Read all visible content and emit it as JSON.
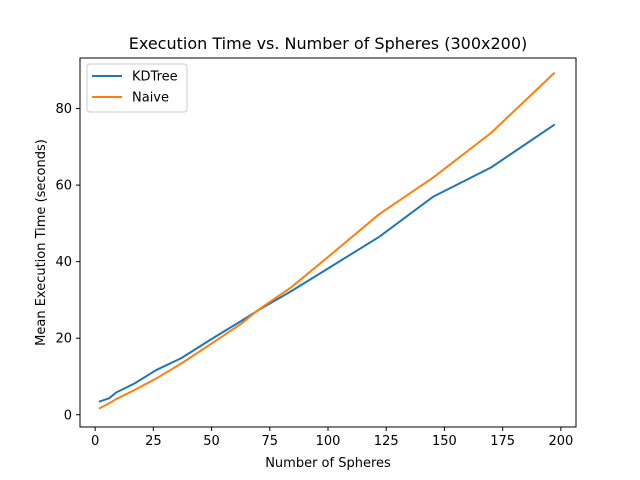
{
  "chart_data": {
    "type": "line",
    "title": "Execution Time vs. Number of Spheres (300x200)",
    "xlabel": "Number of Spheres",
    "ylabel": "Mean Execution Time (seconds)",
    "xlim": [
      -6.5,
      206.5
    ],
    "ylim": [
      -3.2,
      93.2
    ],
    "xticks": [
      0,
      25,
      50,
      75,
      100,
      125,
      150,
      175,
      200
    ],
    "yticks": [
      0,
      20,
      40,
      60,
      80
    ],
    "grid": false,
    "legend_position": "upper-left",
    "series": [
      {
        "name": "KDTree",
        "color": "#1f77b4",
        "x": [
          2,
          6,
          9,
          17,
          26,
          37,
          50,
          63,
          70,
          84,
          100,
          122,
          145,
          170,
          197
        ],
        "y": [
          3.5,
          4.3,
          5.8,
          8.2,
          11.6,
          14.8,
          19.8,
          24.6,
          27.3,
          32.2,
          38.2,
          46.5,
          56.9,
          64.6,
          75.7
        ]
      },
      {
        "name": "Naive",
        "color": "#ff7f0e",
        "x": [
          2,
          6,
          9,
          17,
          26,
          37,
          50,
          63,
          70,
          84,
          100,
          122,
          145,
          170,
          197
        ],
        "y": [
          1.7,
          3.0,
          4.1,
          6.5,
          9.4,
          13.4,
          18.6,
          23.9,
          27.4,
          33.2,
          41.2,
          52.4,
          61.9,
          73.6,
          89.2
        ]
      }
    ]
  }
}
